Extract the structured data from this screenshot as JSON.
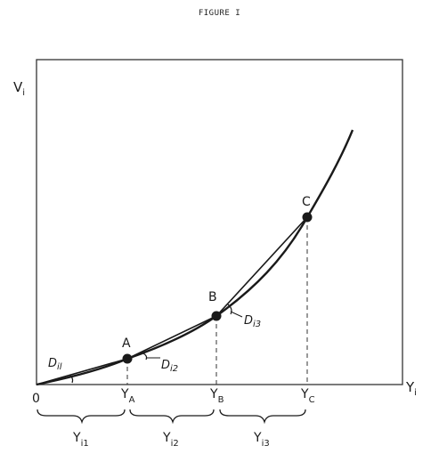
{
  "title": "FIGURE I",
  "axes": {
    "y_label_main": "V",
    "y_label_sub": "i",
    "x_label_main": "Y",
    "x_label_sub": "i",
    "origin": "0"
  },
  "points": {
    "a": "A",
    "b": "B",
    "c": "C"
  },
  "x_ticks": [
    {
      "main": "Y",
      "sub": "A"
    },
    {
      "main": "Y",
      "sub": "B"
    },
    {
      "main": "Y",
      "sub": "C"
    }
  ],
  "angles": [
    {
      "main": "D",
      "sub": "il"
    },
    {
      "main": "D",
      "sub": "i2"
    },
    {
      "main": "D",
      "sub": "i3"
    }
  ],
  "intervals": [
    {
      "main": "Y",
      "sub": "i1"
    },
    {
      "main": "Y",
      "sub": "i2"
    },
    {
      "main": "Y",
      "sub": "i3"
    }
  ],
  "colors": {
    "ink": "#1a1a1a"
  }
}
